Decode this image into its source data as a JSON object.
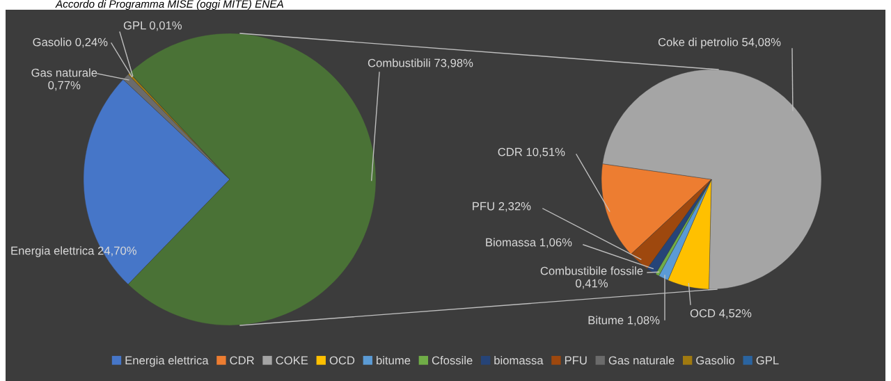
{
  "chart_data": [
    {
      "type": "pie",
      "title": "Accordo di Programma MISE (oggi MITE) ENEA",
      "categories": [
        "Energia elettrica",
        "Gas naturale",
        "Gasolio",
        "GPL",
        null
      ],
      "values": [
        24.7,
        0.77,
        0.24,
        0.01,
        73.98
      ],
      "colors": [
        "#4676c8",
        "#6b6b6b",
        "#a07a10",
        "#2a64a0",
        "#4a7236"
      ],
      "value_labels": [
        "Energia elettrica 24,70%",
        "Gas naturale 0,77%",
        "Gasolio 0,24%",
        "GPL 0,01%",
        "Combustibili 73,98%"
      ],
      "legend": "bottom"
    },
    {
      "type": "pie",
      "categories": [
        "CDR",
        "COKE",
        "OCD",
        "bitume",
        "Cfossile",
        "biomassa",
        "PFU"
      ],
      "values": [
        10.51,
        54.08,
        4.52,
        1.08,
        0.41,
        1.06,
        2.32
      ],
      "colors": [
        "#ed7d31",
        "#a5a5a5",
        "#ffc000",
        "#5b9bd5",
        "#70ad47",
        "#264478",
        "#9e480e"
      ],
      "value_labels": [
        "CDR 10,51%",
        "Coke di petrolio 54,08%",
        "OCD 4,52%",
        "Bitume 1,08%",
        "Combustibile fossile 0,41%",
        "Biomassa 1,06%",
        "PFU 2,32%"
      ],
      "legend": "bottom"
    }
  ]
}
